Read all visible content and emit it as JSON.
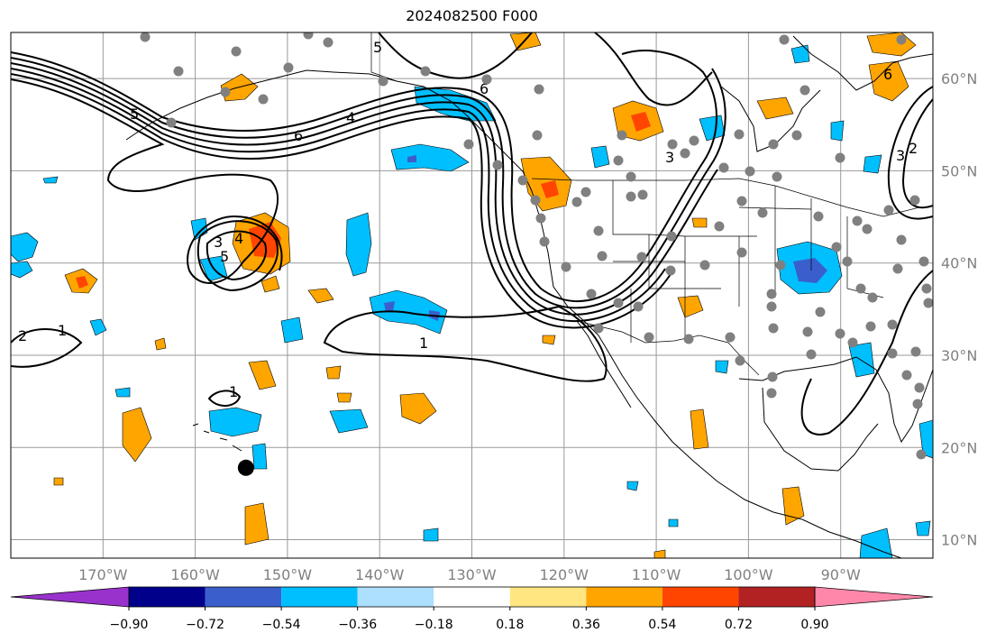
{
  "title": "2024082500 F000",
  "chart_data": {
    "type": "contour-map",
    "title": "2024082500 F000",
    "lon_range": [
      -180,
      -80
    ],
    "lat_range": [
      8,
      65
    ],
    "lon_ticks": [
      {
        "value": -170,
        "label": "170°W"
      },
      {
        "value": -160,
        "label": "160°W"
      },
      {
        "value": -150,
        "label": "150°W"
      },
      {
        "value": -140,
        "label": "140°W"
      },
      {
        "value": -130,
        "label": "130°W"
      },
      {
        "value": -120,
        "label": "120°W"
      },
      {
        "value": -110,
        "label": "110°W"
      },
      {
        "value": -100,
        "label": "100°W"
      },
      {
        "value": -90,
        "label": "90°W"
      }
    ],
    "lat_ticks": [
      {
        "value": 60,
        "label": "60°N"
      },
      {
        "value": 50,
        "label": "50°N"
      },
      {
        "value": 40,
        "label": "40°N"
      },
      {
        "value": 30,
        "label": "30°N"
      },
      {
        "value": 20,
        "label": "20°N"
      },
      {
        "value": 10,
        "label": "10°N"
      }
    ],
    "colorbar": {
      "levels": [
        -0.9,
        -0.72,
        -0.54,
        -0.36,
        -0.18,
        0.18,
        0.36,
        0.54,
        0.72,
        0.9
      ],
      "tick_labels": [
        "−0.90",
        "−0.72",
        "−0.54",
        "−0.36",
        "−0.18",
        "0.18",
        "0.36",
        "0.54",
        "0.72",
        "0.90"
      ],
      "colors": [
        "#9932CC",
        "#00008B",
        "#3A5FCD",
        "#00BFFF",
        "#ADDFFF",
        "#FFFFFF",
        "#FFE680",
        "#FFA500",
        "#FF4500",
        "#B22222",
        "#FF88AA"
      ],
      "extend": "both"
    },
    "contour_labels": [
      "1",
      "2",
      "3",
      "4",
      "5",
      "6"
    ],
    "marker": {
      "lon": -154.5,
      "lat": 17.8,
      "color": "#000000"
    }
  }
}
